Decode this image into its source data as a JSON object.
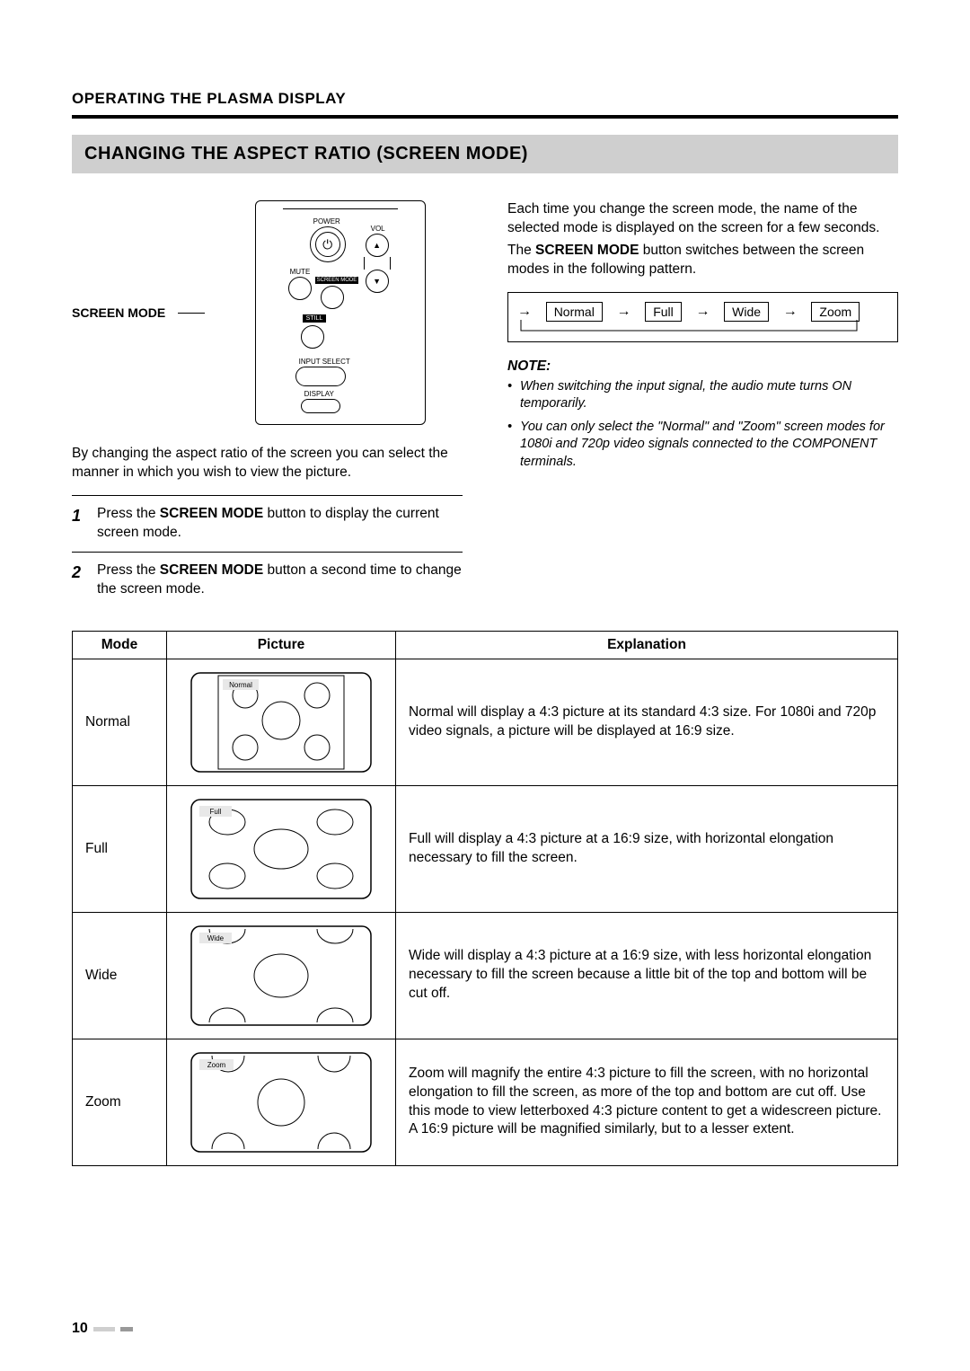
{
  "header": {
    "section": "OPERATING THE PLASMA DISPLAY",
    "title": "CHANGING THE ASPECT RATIO (SCREEN MODE)"
  },
  "remote": {
    "callout": "SCREEN MODE",
    "labels": {
      "power": "POWER",
      "vol": "VOL",
      "mute": "MUTE",
      "screenmode": "SCREEN MODE",
      "still": "STILL",
      "input": "INPUT SELECT",
      "display": "DISPLAY"
    }
  },
  "left": {
    "intro": "By changing the aspect ratio of the screen you can select the manner in which you wish to view the picture.",
    "steps": [
      {
        "n": "1",
        "pre": "Press the ",
        "bold": "SCREEN MODE",
        "post": " button to display the current screen mode."
      },
      {
        "n": "2",
        "pre": "Press the ",
        "bold": "SCREEN MODE",
        "post": " button a second time to change the screen mode."
      }
    ]
  },
  "right": {
    "p1": "Each time you change the screen mode, the name of the selected mode is displayed on the screen for a few seconds.",
    "p2_pre": "The ",
    "p2_bold": "SCREEN MODE",
    "p2_post": " button switches between the screen modes in the following pattern.",
    "cycle": [
      "Normal",
      "Full",
      "Wide",
      "Zoom"
    ],
    "note_head": "NOTE:",
    "notes": [
      "When switching the input signal, the audio mute turns ON temporarily.",
      "You can only select the \"Normal\" and \"Zoom\" screen modes for 1080i and 720p video signals connected to the COMPONENT terminals."
    ]
  },
  "table": {
    "headers": {
      "mode": "Mode",
      "picture": "Picture",
      "explanation": "Explanation"
    },
    "rows": [
      {
        "mode": "Normal",
        "pic_label": "Normal",
        "pic_variant": "normal",
        "expl": "Normal will display a 4:3 picture at its standard 4:3 size. For 1080i and 720p video signals, a picture will be displayed at 16:9 size."
      },
      {
        "mode": "Full",
        "pic_label": "Full",
        "pic_variant": "full",
        "expl": "Full will display a 4:3 picture at a 16:9 size, with horizontal elongation necessary to fill the screen."
      },
      {
        "mode": "Wide",
        "pic_label": "Wide",
        "pic_variant": "wide",
        "expl": "Wide will display a 4:3 picture at a 16:9 size, with less horizontal elongation necessary to fill the screen because a little bit of the top and bottom will be cut off."
      },
      {
        "mode": "Zoom",
        "pic_label": "Zoom",
        "pic_variant": "zoom",
        "expl": "Zoom will magnify the entire 4:3 picture to fill the screen, with no horizontal elongation to fill the screen, as more of the top and bottom are cut off. Use this mode to view letterboxed 4:3 picture content to get a widescreen picture. A 16:9 picture will be magnified similarly, but to a lesser extent."
      }
    ]
  },
  "page_number": "10",
  "colors": {
    "titlebar_bg": "#cfcfcf",
    "text": "#000000",
    "page_bg": "#ffffff"
  }
}
